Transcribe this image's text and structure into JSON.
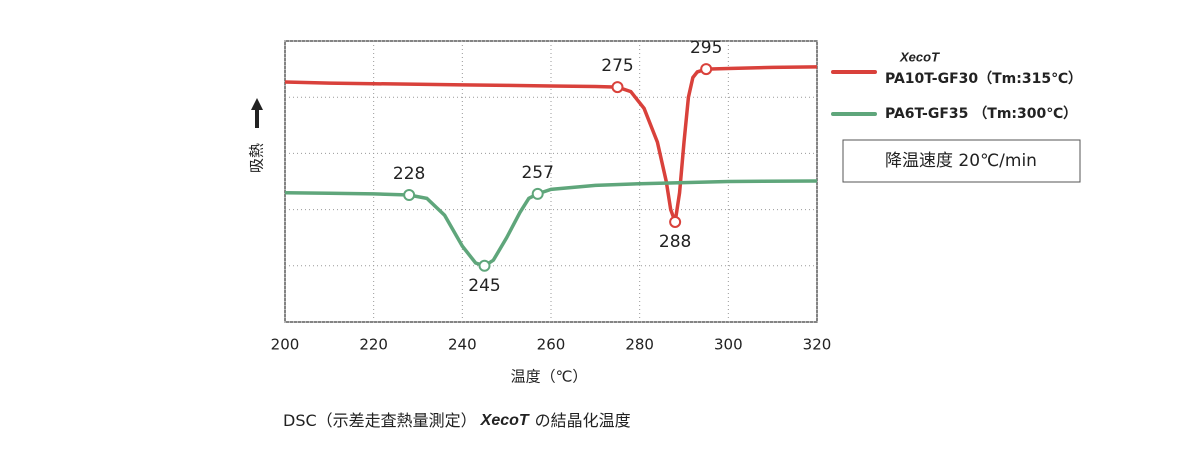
{
  "chart_data": {
    "type": "line",
    "brand": "XecoT",
    "subtitle": "降温速度 20℃/min",
    "x_label": "温度（℃）",
    "y_label": "吸熱",
    "caption_prefix": "DSC（示差走査熱量測定）",
    "caption_suffix": "の結晶化温度",
    "xlim": [
      200,
      320
    ],
    "xticks": [
      200,
      220,
      240,
      260,
      280,
      300,
      320
    ],
    "ylim": [
      0,
      5
    ],
    "yticks": [
      0,
      1,
      2,
      3,
      4,
      5
    ],
    "grid": true,
    "series": [
      {
        "name": "PA10T-GF30（Tm:315℃）",
        "color": "#d9413b",
        "branded": true,
        "x": [
          200,
          210,
          220,
          230,
          240,
          250,
          260,
          270,
          275,
          278,
          281,
          284,
          286,
          287,
          288,
          289,
          290,
          291,
          292,
          293,
          295,
          300,
          310,
          320
        ],
        "values": [
          4.27,
          4.25,
          4.24,
          4.23,
          4.22,
          4.21,
          4.2,
          4.19,
          4.18,
          4.1,
          3.8,
          3.2,
          2.5,
          2.0,
          1.78,
          2.3,
          3.2,
          4.0,
          4.35,
          4.45,
          4.5,
          4.51,
          4.53,
          4.54
        ],
        "markers": [
          {
            "x": 275,
            "y": 4.18
          },
          {
            "x": 288,
            "y": 1.78
          },
          {
            "x": 295,
            "y": 4.5
          }
        ]
      },
      {
        "name": "PA6T-GF35 （Tm:300℃）",
        "color": "#5fa67b",
        "branded": false,
        "x": [
          200,
          210,
          220,
          228,
          232,
          236,
          240,
          243,
          245,
          247,
          250,
          253,
          255,
          257,
          260,
          270,
          280,
          300,
          320
        ],
        "values": [
          2.3,
          2.29,
          2.28,
          2.26,
          2.2,
          1.9,
          1.35,
          1.05,
          1.0,
          1.1,
          1.5,
          1.95,
          2.2,
          2.28,
          2.36,
          2.43,
          2.46,
          2.5,
          2.51
        ],
        "markers": [
          {
            "x": 228,
            "y": 2.26
          },
          {
            "x": 245,
            "y": 1.0
          },
          {
            "x": 257,
            "y": 2.28
          }
        ]
      }
    ]
  }
}
